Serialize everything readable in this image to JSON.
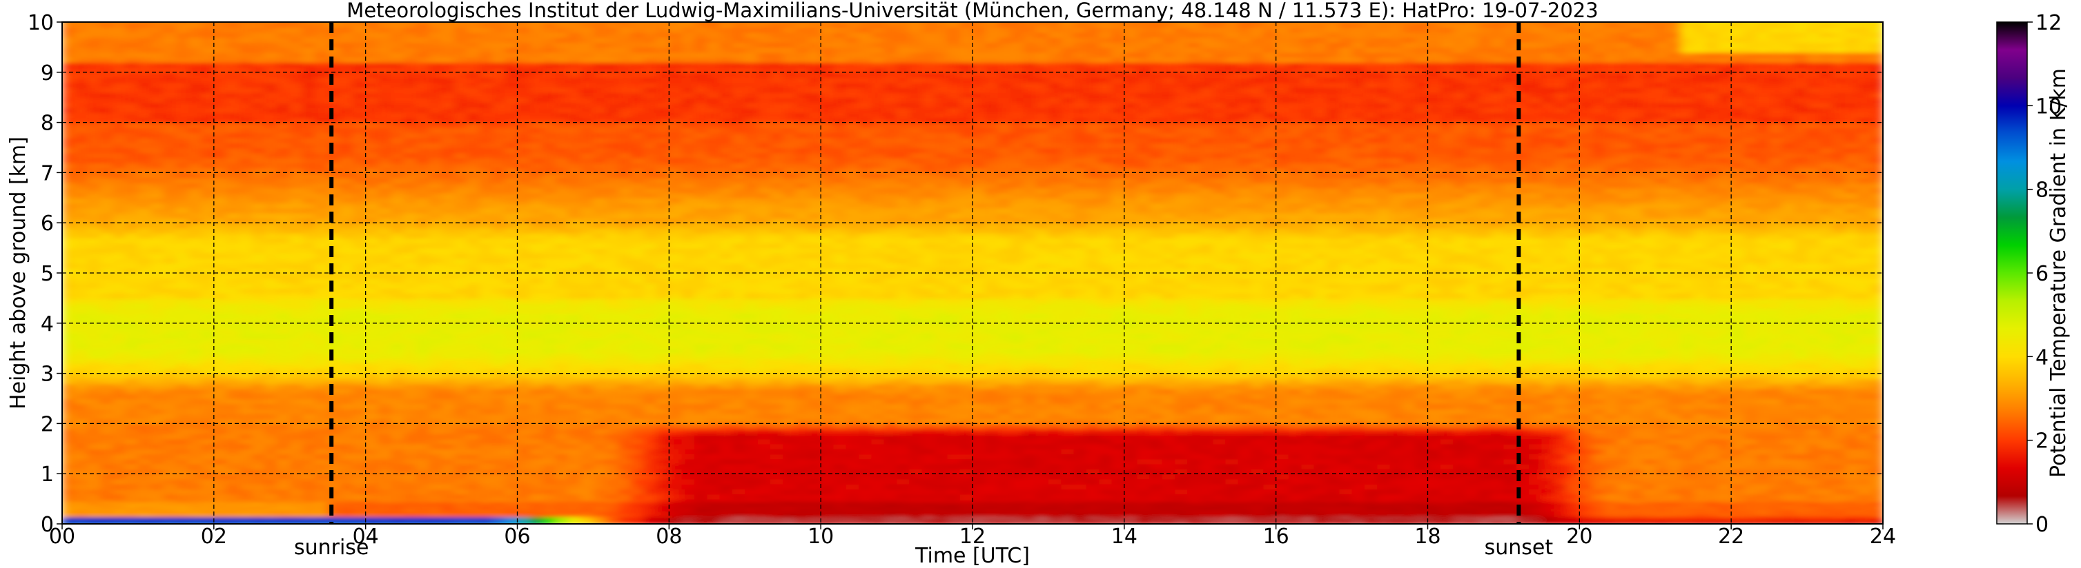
{
  "chart_data": {
    "type": "heatmap",
    "title": "Meteorologisches Institut der Ludwig-Maximilians-Universität (München, Germany; 48.148 N / 11.573 E):    HatPro: 19-07-2023",
    "xlabel": "Time [UTC]",
    "ylabel": "Height above ground [km]",
    "xlim": [
      0,
      24
    ],
    "ylim": [
      0,
      10
    ],
    "x_ticks": [
      0,
      2,
      4,
      6,
      8,
      10,
      12,
      14,
      16,
      18,
      20,
      22,
      24
    ],
    "x_tick_labels": [
      "00",
      "02",
      "04",
      "06",
      "08",
      "10",
      "12",
      "14",
      "16",
      "18",
      "20",
      "22",
      "24"
    ],
    "y_ticks": [
      0,
      1,
      2,
      3,
      4,
      5,
      6,
      7,
      8,
      9,
      10
    ],
    "y_tick_labels": [
      "0",
      "1",
      "2",
      "3",
      "4",
      "5",
      "6",
      "7",
      "8",
      "9",
      "10"
    ],
    "grid": true,
    "colorbar": {
      "label": "Potential Temperature Gradient in K/km",
      "min": 0,
      "max": 12,
      "ticks": [
        0,
        2,
        4,
        6,
        8,
        10,
        12
      ],
      "tick_labels": [
        "0",
        "2",
        "4",
        "6",
        "8",
        "10",
        "12"
      ],
      "colors": [
        "#d3d3d3",
        "#b30000",
        "#e00000",
        "#ff3a00",
        "#ff7a00",
        "#ffb000",
        "#ffdd00",
        "#e6f000",
        "#b8f000",
        "#5ae800",
        "#00d000",
        "#009a3a",
        "#00a0a8",
        "#0090e0",
        "#0050d0",
        "#0000b0",
        "#4b0080",
        "#80008c",
        "#000000"
      ]
    },
    "markers": [
      {
        "label": "sunrise",
        "x": 3.55
      },
      {
        "label": "sunset",
        "x": 19.2
      }
    ],
    "approx_field": [
      {
        "layer_km": [
          0,
          0.15
        ],
        "description": "near-surface",
        "morning_value": 9,
        "afternoon_value": 0.5
      },
      {
        "layer_km": [
          0.15,
          2.0
        ],
        "morning_value": 2.7,
        "afternoon_value": 1.2
      },
      {
        "layer_km": [
          2.0,
          3.0
        ],
        "value": 2.8
      },
      {
        "layer_km": [
          3.0,
          4.5
        ],
        "value": 4.6
      },
      {
        "layer_km": [
          4.5,
          6.0
        ],
        "value": 3.9
      },
      {
        "layer_km": [
          6.0,
          8.0
        ],
        "value": 2.6
      },
      {
        "layer_km": [
          8.0,
          9.2
        ],
        "value": 2.0
      },
      {
        "layer_km": [
          9.2,
          10.0
        ],
        "value": 2.7
      }
    ]
  }
}
